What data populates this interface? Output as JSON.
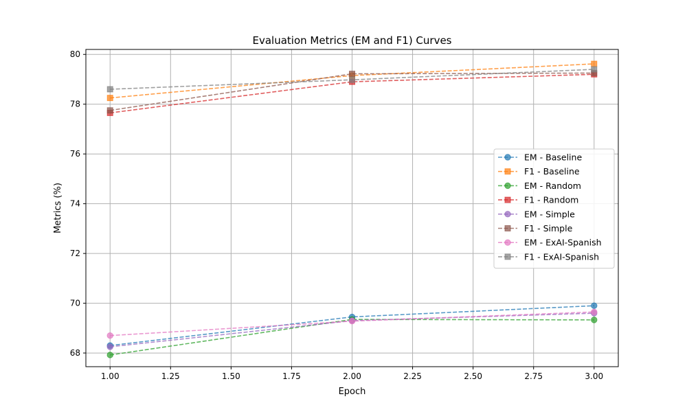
{
  "chart_data": {
    "type": "line",
    "title": "Evaluation Metrics (EM and F1) Curves",
    "xlabel": "Epoch",
    "ylabel": "Metrics (%)",
    "xlim": [
      0.9,
      3.1
    ],
    "ylim": [
      67.45,
      80.2
    ],
    "x": [
      1.0,
      2.0,
      3.0
    ],
    "xticks": [
      "1.00",
      "1.25",
      "1.50",
      "1.75",
      "2.00",
      "2.25",
      "2.50",
      "2.75",
      "3.00"
    ],
    "yticks": [
      "68",
      "70",
      "72",
      "74",
      "76",
      "78",
      "80"
    ],
    "grid": true,
    "line_style": "dashed",
    "legend_position": "center-right",
    "series": [
      {
        "name": "EM - Baseline",
        "marker": "circle",
        "color": "#1f77b4",
        "values": [
          68.3,
          69.45,
          69.9
        ]
      },
      {
        "name": "F1 - Baseline",
        "marker": "square",
        "color": "#ff7f0e",
        "values": [
          78.25,
          79.15,
          79.62
        ]
      },
      {
        "name": "EM - Random",
        "marker": "circle",
        "color": "#2ca02c",
        "values": [
          67.92,
          69.35,
          69.33
        ]
      },
      {
        "name": "F1 - Random",
        "marker": "square",
        "color": "#d62728",
        "values": [
          77.65,
          78.9,
          79.2
        ]
      },
      {
        "name": "EM - Simple",
        "marker": "circle",
        "color": "#9467bd",
        "values": [
          68.25,
          69.3,
          69.6
        ]
      },
      {
        "name": "F1 - Simple",
        "marker": "square",
        "color": "#8c564b",
        "values": [
          77.75,
          79.22,
          79.25
        ]
      },
      {
        "name": "EM - ExAI-Spanish",
        "marker": "circle",
        "color": "#e377c2",
        "values": [
          68.7,
          69.28,
          69.65
        ]
      },
      {
        "name": "F1 - ExAI-Spanish",
        "marker": "square",
        "color": "#7f7f7f",
        "values": [
          78.6,
          78.98,
          79.4
        ]
      }
    ]
  }
}
